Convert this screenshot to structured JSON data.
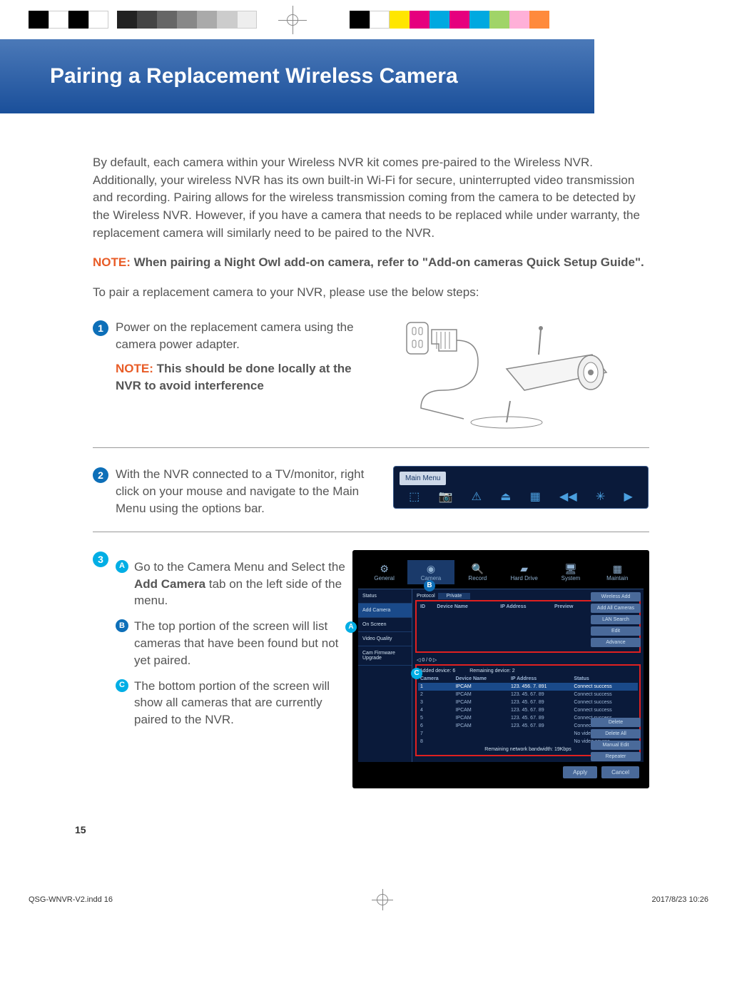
{
  "header": {
    "title": "Pairing a Replacement Wireless Camera"
  },
  "intro": "By default, each camera within your Wireless NVR kit comes pre-paired to the Wireless NVR. Additionally, your wireless NVR has its own built-in Wi-Fi for secure, uninterrupted video transmission and recording. Pairing allows for the wireless transmission coming from the camera to be detected by the Wireless NVR. However, if you have a camera that needs to be replaced while under warranty, the replacement camera will similarly need to be paired to the NVR.",
  "note1_label": "NOTE: ",
  "note1_body": "When pairing a Night Owl add-on camera, refer to \"Add-on cameras Quick Setup Guide\".",
  "intro2": "To pair a replacement camera to your NVR, please use the below steps:",
  "steps": {
    "1": {
      "num": "1",
      "text": "Power on the replacement camera using the camera power adapter.",
      "note_label": "NOTE: ",
      "note_body": "This should be done locally at the NVR to avoid interference"
    },
    "2": {
      "num": "2",
      "text": "With the NVR connected to a TV/monitor, right click on your mouse and navigate to the Main Menu using the options bar."
    },
    "3": {
      "num": "3",
      "A": {
        "letter": "A",
        "pre": "Go to the Camera Menu and Select the ",
        "bold": "Add Camera",
        "post": " tab on the left side of the menu."
      },
      "B": {
        "letter": "B",
        "text": "The top portion of the screen will list cameras that have been found but not yet paired."
      },
      "C": {
        "letter": "C",
        "text": "The bottom portion of the screen will show all cameras that are currently paired to the NVR."
      }
    }
  },
  "menu": {
    "label": "Main Menu"
  },
  "nvr": {
    "tabs": [
      "General",
      "Camera",
      "Record",
      "Hard Drive",
      "System",
      "Maintain"
    ],
    "side": [
      "Status",
      "Add Camera",
      "On Screen",
      "Video Quality",
      "Cam Firmware Upgrade"
    ],
    "topHeaders": [
      "ID",
      "Device Name",
      "IP Address",
      "Preview",
      "Protocol"
    ],
    "protocol": "Protocol",
    "private": "Private",
    "btnsTop": [
      "Wireless Add",
      "Add All Cameras",
      "LAN Search",
      "Edit",
      "Advance"
    ],
    "addedLabel": "Added device:",
    "addedCount": "6",
    "remainLabel": "Remaining device:",
    "remainCount": "2",
    "botHeaders": [
      "Camera",
      "Device Name",
      "IP Address",
      "Status"
    ],
    "rows": [
      {
        "c": "1",
        "d": "IPCAM",
        "ip": "123. 456. 7. 891",
        "s": "Connect success"
      },
      {
        "c": "2",
        "d": "IPCAM",
        "ip": "123. 45. 67. 89",
        "s": "Connect success"
      },
      {
        "c": "3",
        "d": "IPCAM",
        "ip": "123. 45. 67. 89",
        "s": "Connect success"
      },
      {
        "c": "4",
        "d": "IPCAM",
        "ip": "123. 45. 67. 89",
        "s": "Connect success"
      },
      {
        "c": "5",
        "d": "IPCAM",
        "ip": "123. 45. 67. 89",
        "s": "Connect success"
      },
      {
        "c": "6",
        "d": "IPCAM",
        "ip": "123. 45. 67. 89",
        "s": "Connect success"
      },
      {
        "c": "7",
        "d": "",
        "ip": "",
        "s": "No video source"
      },
      {
        "c": "8",
        "d": "",
        "ip": "",
        "s": "No video source"
      }
    ],
    "btnsBot": [
      "Delete",
      "Delete All",
      "Manual Edit",
      "Repeater"
    ],
    "bandwidth": "Remaining network bandwidth:",
    "bw": "19Kbps",
    "apply": "Apply",
    "cancel": "Cancel"
  },
  "colors": {
    "regRight": [
      "#000000",
      "#ffffff",
      "#ffe600",
      "#e6007e",
      "#00a9e0",
      "#e6007e",
      "#00a9e0",
      "#a0d468",
      "#ffb0d8",
      "#ff8a3c"
    ],
    "header_grad_top": "#4b79b8",
    "header_grad_bot": "#1a4f9a",
    "note": "#e85c27",
    "num_bg": "#0d6fb8",
    "letter_a": "#00aee5"
  },
  "page_number": "15",
  "footer": {
    "file": "QSG-WNVR-V2.indd   16",
    "date": "2017/8/23   10:26"
  }
}
